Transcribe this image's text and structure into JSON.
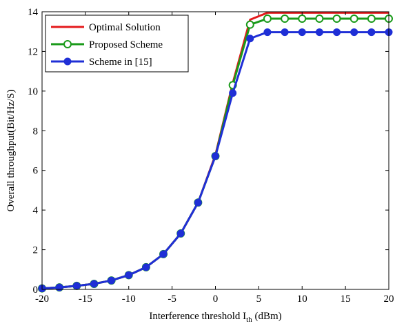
{
  "chart_data": {
    "type": "line",
    "title": "",
    "xlabel": "Interference threshold I",
    "xlabel_subscript": "th",
    "xlabel_suffix": " (dBm)",
    "ylabel": "Overall throughput(Bit/Hz/S)",
    "xlim": [
      -20,
      20
    ],
    "ylim": [
      0,
      14
    ],
    "x_ticks": [
      -20,
      -15,
      -10,
      -5,
      0,
      5,
      10,
      15,
      20
    ],
    "y_ticks": [
      0,
      2,
      4,
      6,
      8,
      10,
      12,
      14
    ],
    "grid": false,
    "legend_position": "top-left",
    "x": [
      -20,
      -18,
      -16,
      -14,
      -12,
      -10,
      -8,
      -6,
      -4,
      -2,
      0,
      2,
      4,
      6,
      8,
      10,
      12,
      14,
      16,
      18,
      20
    ],
    "series": [
      {
        "name": "Optimal Solution",
        "color": "#e41a1c",
        "marker": "none",
        "values": [
          0.05,
          0.1,
          0.18,
          0.28,
          0.45,
          0.72,
          1.12,
          1.78,
          2.82,
          4.38,
          6.78,
          10.4,
          13.6,
          13.95,
          13.95,
          13.95,
          13.95,
          13.95,
          13.95,
          13.95,
          13.95
        ]
      },
      {
        "name": "Proposed Scheme",
        "color": "#1a9a1a",
        "marker": "open-circle",
        "values": [
          0.05,
          0.1,
          0.18,
          0.28,
          0.45,
          0.72,
          1.12,
          1.78,
          2.82,
          4.38,
          6.72,
          10.3,
          13.35,
          13.65,
          13.65,
          13.65,
          13.65,
          13.65,
          13.65,
          13.65,
          13.65
        ]
      },
      {
        "name": "Scheme in [15]",
        "color": "#1f2fd6",
        "marker": "filled-circle",
        "values": [
          0.05,
          0.1,
          0.18,
          0.28,
          0.45,
          0.72,
          1.12,
          1.78,
          2.82,
          4.38,
          6.72,
          9.9,
          12.65,
          12.97,
          12.97,
          12.97,
          12.97,
          12.97,
          12.97,
          12.97,
          12.97
        ]
      }
    ]
  }
}
